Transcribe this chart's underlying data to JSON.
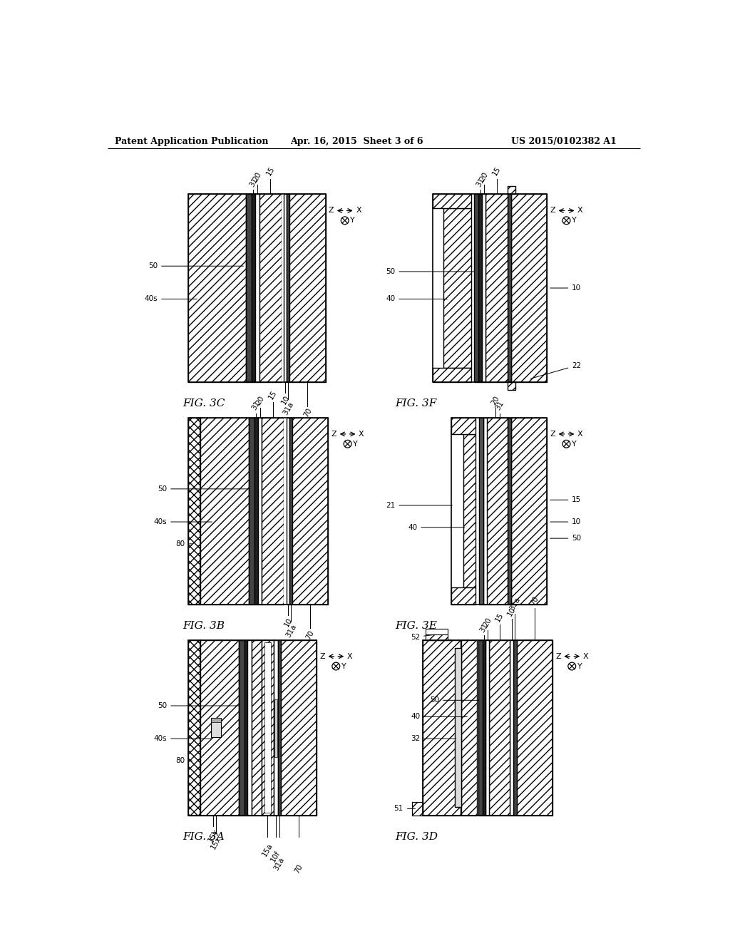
{
  "header_left": "Patent Application Publication",
  "header_mid": "Apr. 16, 2015  Sheet 3 of 6",
  "header_right": "US 2015/0102382 A1",
  "bg_color": "#ffffff",
  "line_color": "#000000"
}
